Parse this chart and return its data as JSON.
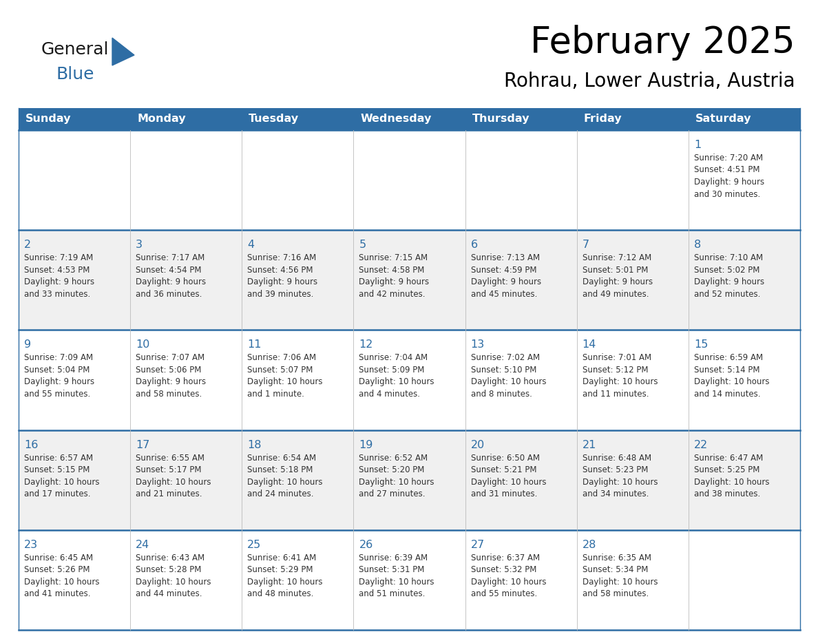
{
  "title": "February 2025",
  "subtitle": "Rohrau, Lower Austria, Austria",
  "header_bg": "#2E6DA4",
  "header_text_color": "#FFFFFF",
  "day_names": [
    "Sunday",
    "Monday",
    "Tuesday",
    "Wednesday",
    "Thursday",
    "Friday",
    "Saturday"
  ],
  "cell_bg_row0": "#FFFFFF",
  "cell_bg_row1": "#F0F0F0",
  "cell_bg_row2": "#FFFFFF",
  "cell_bg_row3": "#F0F0F0",
  "cell_bg_row4": "#FFFFFF",
  "cell_border_color": "#2E6DA4",
  "day_num_color": "#2E6DA4",
  "info_text_color": "#333333",
  "logo_general_color": "#1a1a1a",
  "logo_blue_color": "#2E6DA4",
  "logo_triangle_color": "#2E6DA4",
  "calendar": [
    [
      null,
      null,
      null,
      null,
      null,
      null,
      {
        "day": 1,
        "sunrise": "7:20 AM",
        "sunset": "4:51 PM",
        "daylight": "9 hours",
        "daylight2": "and 30 minutes."
      }
    ],
    [
      {
        "day": 2,
        "sunrise": "7:19 AM",
        "sunset": "4:53 PM",
        "daylight": "9 hours",
        "daylight2": "and 33 minutes."
      },
      {
        "day": 3,
        "sunrise": "7:17 AM",
        "sunset": "4:54 PM",
        "daylight": "9 hours",
        "daylight2": "and 36 minutes."
      },
      {
        "day": 4,
        "sunrise": "7:16 AM",
        "sunset": "4:56 PM",
        "daylight": "9 hours",
        "daylight2": "and 39 minutes."
      },
      {
        "day": 5,
        "sunrise": "7:15 AM",
        "sunset": "4:58 PM",
        "daylight": "9 hours",
        "daylight2": "and 42 minutes."
      },
      {
        "day": 6,
        "sunrise": "7:13 AM",
        "sunset": "4:59 PM",
        "daylight": "9 hours",
        "daylight2": "and 45 minutes."
      },
      {
        "day": 7,
        "sunrise": "7:12 AM",
        "sunset": "5:01 PM",
        "daylight": "9 hours",
        "daylight2": "and 49 minutes."
      },
      {
        "day": 8,
        "sunrise": "7:10 AM",
        "sunset": "5:02 PM",
        "daylight": "9 hours",
        "daylight2": "and 52 minutes."
      }
    ],
    [
      {
        "day": 9,
        "sunrise": "7:09 AM",
        "sunset": "5:04 PM",
        "daylight": "9 hours",
        "daylight2": "and 55 minutes."
      },
      {
        "day": 10,
        "sunrise": "7:07 AM",
        "sunset": "5:06 PM",
        "daylight": "9 hours",
        "daylight2": "and 58 minutes."
      },
      {
        "day": 11,
        "sunrise": "7:06 AM",
        "sunset": "5:07 PM",
        "daylight": "10 hours",
        "daylight2": "and 1 minute."
      },
      {
        "day": 12,
        "sunrise": "7:04 AM",
        "sunset": "5:09 PM",
        "daylight": "10 hours",
        "daylight2": "and 4 minutes."
      },
      {
        "day": 13,
        "sunrise": "7:02 AM",
        "sunset": "5:10 PM",
        "daylight": "10 hours",
        "daylight2": "and 8 minutes."
      },
      {
        "day": 14,
        "sunrise": "7:01 AM",
        "sunset": "5:12 PM",
        "daylight": "10 hours",
        "daylight2": "and 11 minutes."
      },
      {
        "day": 15,
        "sunrise": "6:59 AM",
        "sunset": "5:14 PM",
        "daylight": "10 hours",
        "daylight2": "and 14 minutes."
      }
    ],
    [
      {
        "day": 16,
        "sunrise": "6:57 AM",
        "sunset": "5:15 PM",
        "daylight": "10 hours",
        "daylight2": "and 17 minutes."
      },
      {
        "day": 17,
        "sunrise": "6:55 AM",
        "sunset": "5:17 PM",
        "daylight": "10 hours",
        "daylight2": "and 21 minutes."
      },
      {
        "day": 18,
        "sunrise": "6:54 AM",
        "sunset": "5:18 PM",
        "daylight": "10 hours",
        "daylight2": "and 24 minutes."
      },
      {
        "day": 19,
        "sunrise": "6:52 AM",
        "sunset": "5:20 PM",
        "daylight": "10 hours",
        "daylight2": "and 27 minutes."
      },
      {
        "day": 20,
        "sunrise": "6:50 AM",
        "sunset": "5:21 PM",
        "daylight": "10 hours",
        "daylight2": "and 31 minutes."
      },
      {
        "day": 21,
        "sunrise": "6:48 AM",
        "sunset": "5:23 PM",
        "daylight": "10 hours",
        "daylight2": "and 34 minutes."
      },
      {
        "day": 22,
        "sunrise": "6:47 AM",
        "sunset": "5:25 PM",
        "daylight": "10 hours",
        "daylight2": "and 38 minutes."
      }
    ],
    [
      {
        "day": 23,
        "sunrise": "6:45 AM",
        "sunset": "5:26 PM",
        "daylight": "10 hours",
        "daylight2": "and 41 minutes."
      },
      {
        "day": 24,
        "sunrise": "6:43 AM",
        "sunset": "5:28 PM",
        "daylight": "10 hours",
        "daylight2": "and 44 minutes."
      },
      {
        "day": 25,
        "sunrise": "6:41 AM",
        "sunset": "5:29 PM",
        "daylight": "10 hours",
        "daylight2": "and 48 minutes."
      },
      {
        "day": 26,
        "sunrise": "6:39 AM",
        "sunset": "5:31 PM",
        "daylight": "10 hours",
        "daylight2": "and 51 minutes."
      },
      {
        "day": 27,
        "sunrise": "6:37 AM",
        "sunset": "5:32 PM",
        "daylight": "10 hours",
        "daylight2": "and 55 minutes."
      },
      {
        "day": 28,
        "sunrise": "6:35 AM",
        "sunset": "5:34 PM",
        "daylight": "10 hours",
        "daylight2": "and 58 minutes."
      },
      null
    ]
  ]
}
